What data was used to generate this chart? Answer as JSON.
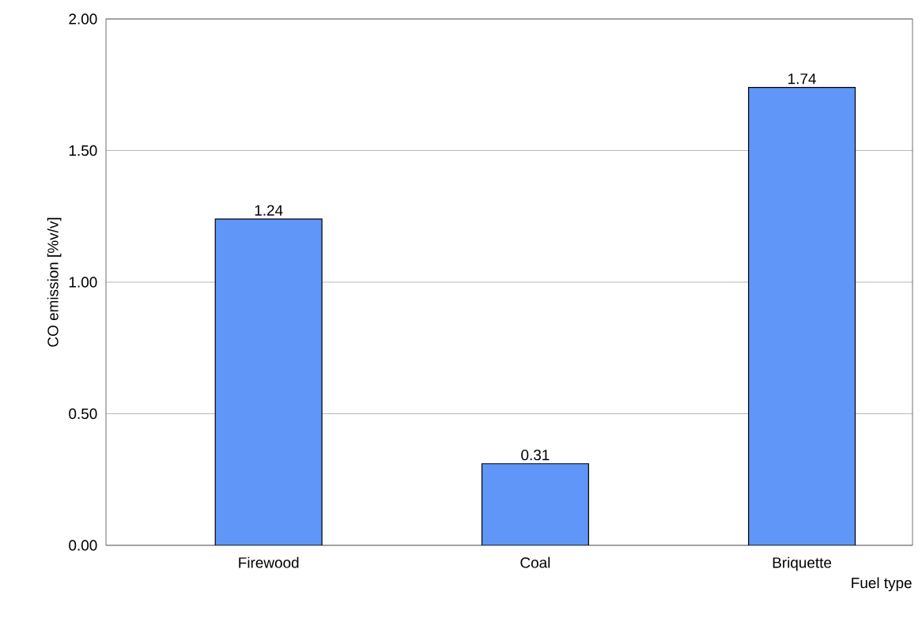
{
  "chart_data": {
    "type": "bar",
    "xlabel": "Fuel type",
    "ylabel": "CO emission [%v/v]",
    "categories": [
      "Firewood",
      "Coal",
      "Briquette"
    ],
    "values": [
      1.24,
      0.31,
      1.74
    ],
    "color": "#5f96f7",
    "ylim": [
      0,
      2
    ],
    "yticks": [
      {
        "value": 0,
        "label": "0.00"
      },
      {
        "value": 0.5,
        "label": "0.50"
      },
      {
        "value": 1,
        "label": "1.00"
      },
      {
        "value": 1.5,
        "label": "1.50"
      },
      {
        "value": 2,
        "label": "2.00"
      }
    ],
    "grid": "y",
    "data_labels": true
  }
}
